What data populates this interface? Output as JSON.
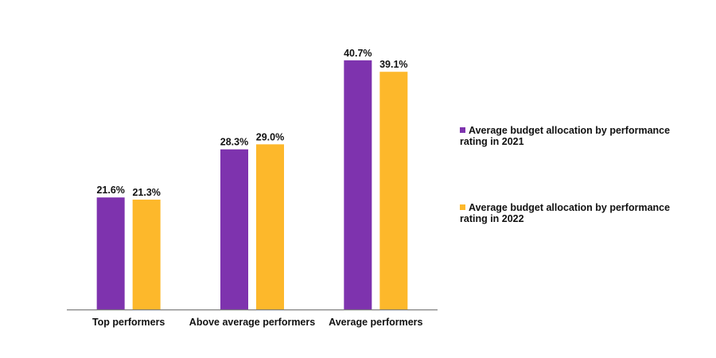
{
  "chart_data": {
    "type": "bar",
    "title": "",
    "xlabel": "",
    "ylabel": "",
    "categories": [
      "Top performers",
      "Above average performers",
      "Average performers"
    ],
    "series": [
      {
        "name": "Average budget allocation by performance rating in 2021",
        "color": "#7E33AE",
        "values": [
          21.6,
          28.3,
          40.7
        ],
        "labels": [
          "21.6%",
          "28.3%",
          "40.7%"
        ]
      },
      {
        "name": "Average budget allocation by performance rating in 2022",
        "color": "#FDB82B",
        "values": [
          21.3,
          29.0,
          39.1
        ],
        "labels": [
          "21.3%",
          "29.0%",
          "39.1%"
        ]
      }
    ],
    "ylim": [
      6,
      44
    ],
    "grid": false,
    "legend_position": "right"
  }
}
